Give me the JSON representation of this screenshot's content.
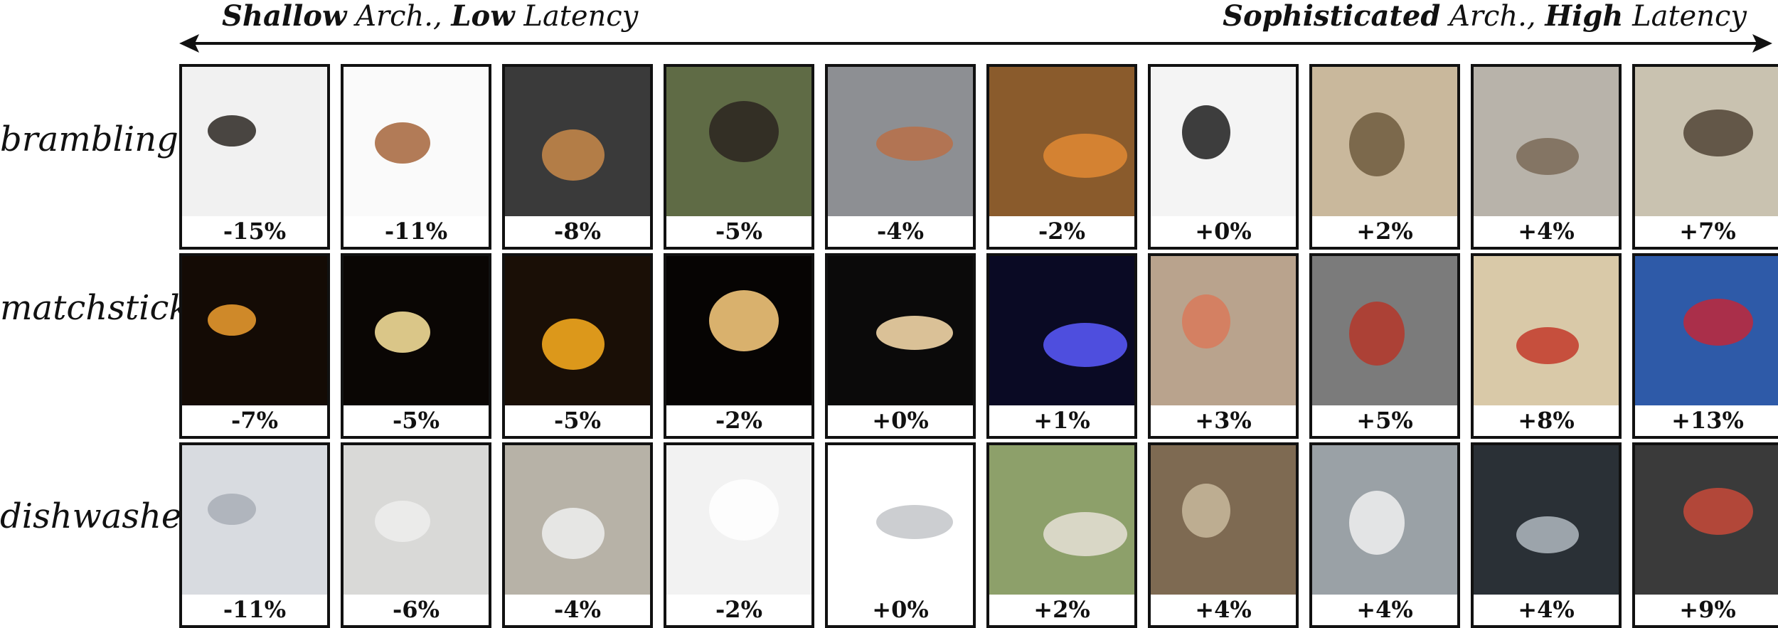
{
  "header": {
    "left": {
      "bold": "Shallow",
      "mid": " Arch., ",
      "bold2": "Low",
      "rest": " Latency"
    },
    "right": {
      "bold": "Sophisticated",
      "mid": " Arch., ",
      "bold2": "High",
      "rest": " Latency"
    }
  },
  "rows": [
    {
      "label": "brambling",
      "captions": [
        "-15%",
        "-11%",
        "-8%",
        "-5%",
        "-4%",
        "-2%",
        "+0%",
        "+2%",
        "+4%",
        "+7%"
      ],
      "backgrounds": [
        "#f1f1f1",
        "#fafafa",
        "#3a3a3a",
        "#5f6b45",
        "#8d8f93",
        "#8a5b2c",
        "#f4f4f4",
        "#c9b89c",
        "#b8b3aa",
        "#c9c2b0"
      ],
      "accents": [
        "#2c2722",
        "#a5643a",
        "#c98a4a",
        "#2b2420",
        "#b87048",
        "#e08a34",
        "#1c1c1c",
        "#6e5a3e",
        "#7a6a58",
        "#514436"
      ]
    },
    {
      "label": "matchstick",
      "captions": [
        "-7%",
        "-5%",
        "-5%",
        "-2%",
        "+0%",
        "+1%",
        "+3%",
        "+5%",
        "+8%",
        "+13%"
      ],
      "backgrounds": [
        "#140b05",
        "#0a0604",
        "#1a0f06",
        "#060403",
        "#0b0a0a",
        "#0a0a24",
        "#b9a38d",
        "#7b7b7b",
        "#d9c9a8",
        "#2e5aa8"
      ],
      "accents": [
        "#f0a030",
        "#ffe9a0",
        "#ffb020",
        "#ffd080",
        "#ffe2b0",
        "#5a5aff",
        "#d87a5a",
        "#b5372a",
        "#c23a2a",
        "#c0283a"
      ]
    },
    {
      "label": "dishwasher",
      "captions": [
        "-11%",
        "-6%",
        "-4%",
        "-2%",
        "+0%",
        "+2%",
        "+4%",
        "+4%",
        "+4%",
        "+9%"
      ],
      "backgrounds": [
        "#d8dbe0",
        "#d9d9d7",
        "#b7b2a7",
        "#f2f2f2",
        "#ffffff",
        "#8da06a",
        "#7e6a52",
        "#9aa1a6",
        "#2a3036",
        "#3a3a3a"
      ],
      "accents": [
        "#a9aeb6",
        "#ededed",
        "#eeeeee",
        "#ffffff",
        "#c3c6c9",
        "#e6e1d6",
        "#c8b89c",
        "#f0f0f0",
        "#b0b8c0",
        "#c84a3a"
      ]
    }
  ]
}
